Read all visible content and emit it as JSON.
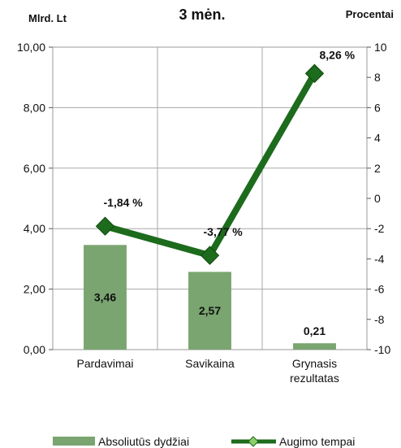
{
  "chart_data": {
    "type": "bar+line",
    "title": "3 mėn.",
    "y_left_label": "Mlrd. Lt",
    "y_right_label": "Procentai",
    "categories": [
      "Pardavimai",
      "Savikaina",
      [
        "Grynasis",
        "rezultatas"
      ]
    ],
    "y_left": {
      "min": 0,
      "max": 10,
      "ticks": [
        "0,00",
        "2,00",
        "4,00",
        "6,00",
        "8,00",
        "10,00"
      ],
      "tick_values": [
        0,
        2,
        4,
        6,
        8,
        10
      ]
    },
    "y_right": {
      "min": -10,
      "max": 10,
      "ticks": [
        "-10",
        "-8",
        "-6",
        "-4",
        "-2",
        "0",
        "2",
        "4",
        "6",
        "8",
        "10"
      ],
      "tick_values": [
        -10,
        -8,
        -6,
        -4,
        -2,
        0,
        2,
        4,
        6,
        8,
        10
      ]
    },
    "grid": true,
    "series": [
      {
        "name": "Absoliutūs dydžiai",
        "type": "bar",
        "axis": "left",
        "values": [
          3.46,
          2.57,
          0.21
        ],
        "labels": [
          "3,46",
          "2,57",
          "0,21"
        ],
        "color": "#7aa570"
      },
      {
        "name": "Augimo tempai",
        "type": "line",
        "axis": "right",
        "values": [
          -1.84,
          -3.77,
          8.26
        ],
        "labels": [
          "-1,84 %",
          "-3,77 %",
          "8,26 %"
        ],
        "color": "#1d6b1d",
        "marker_color": "#1d6b1d"
      }
    ],
    "legend_position": "bottom"
  }
}
